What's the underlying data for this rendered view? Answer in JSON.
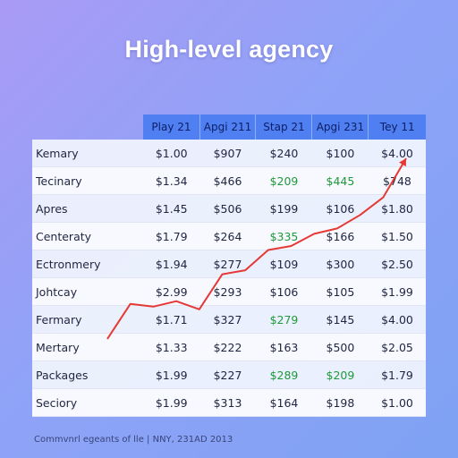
{
  "title": "High-level agency",
  "footer": "Commvnrl egeants of lle | NNY, 231AD 2013",
  "colors": {
    "header": "#4f7ff0",
    "positive": "#1f9a3a",
    "trend": "#e53935"
  },
  "chart_data": {
    "type": "table",
    "columns": [
      "Play 21",
      "Apgi 211",
      "Stap 21",
      "Apgi 231",
      "Tey 11"
    ],
    "rows": [
      {
        "label": "Kemary",
        "values": [
          "$1.00",
          "$907",
          "$240",
          "$100",
          "$4.00"
        ]
      },
      {
        "label": "Tecinary",
        "values": [
          "$1.34",
          "$466",
          "$209",
          "$445",
          "$748"
        ]
      },
      {
        "label": "Apres",
        "values": [
          "$1.45",
          "$506",
          "$199",
          "$106",
          "$1.80"
        ]
      },
      {
        "label": "Centeraty",
        "values": [
          "$1.79",
          "$264",
          "$335",
          "$166",
          "$1.50"
        ]
      },
      {
        "label": "Ectronmery",
        "values": [
          "$1.94",
          "$277",
          "$109",
          "$300",
          "$2.50"
        ]
      },
      {
        "label": "Johtcay",
        "values": [
          "$2.99",
          "$293",
          "$106",
          "$105",
          "$1.99"
        ]
      },
      {
        "label": "Fermary",
        "values": [
          "$1.71",
          "$327",
          "$279",
          "$145",
          "$4.00"
        ]
      },
      {
        "label": "Mertary",
        "values": [
          "$1.33",
          "$222",
          "$163",
          "$500",
          "$2.05"
        ]
      },
      {
        "label": "Packages",
        "values": [
          "$1.99",
          "$227",
          "$289",
          "$209",
          "$1.79"
        ]
      },
      {
        "label": "Seciory",
        "values": [
          "$1.99",
          "$313",
          "$164",
          "$198",
          "$1.00"
        ]
      }
    ],
    "green_cells": [
      [
        1,
        2
      ],
      [
        1,
        3
      ],
      [
        3,
        2
      ],
      [
        6,
        2
      ],
      [
        8,
        2
      ],
      [
        8,
        3
      ]
    ],
    "trend_line": {
      "type": "line",
      "x": [
        0,
        1,
        2,
        3,
        4,
        5,
        6,
        7,
        8,
        9,
        10,
        11,
        12,
        13
      ],
      "y": [
        1,
        3.6,
        3.4,
        3.8,
        3.2,
        5.8,
        6.1,
        7.6,
        7.9,
        8.8,
        9.2,
        10.2,
        11.5,
        14.4
      ],
      "ylim": [
        0,
        15
      ]
    }
  }
}
